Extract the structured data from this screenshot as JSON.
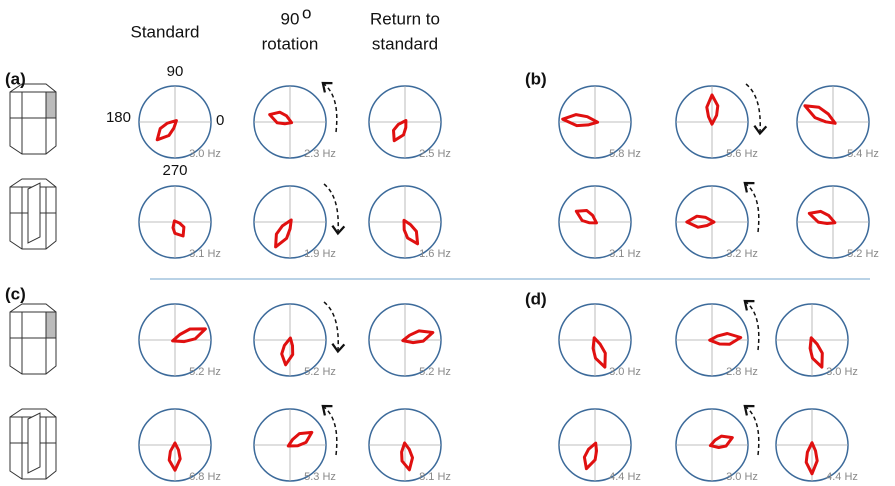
{
  "column_headers": [
    {
      "lines": [
        "Standard"
      ]
    },
    {
      "lines": [
        "90",
        "rotation"
      ],
      "sup": "o"
    },
    {
      "lines": [
        "Return to",
        "standard"
      ]
    }
  ],
  "angle_labels": {
    "top": "90",
    "left": "180",
    "right": "0",
    "bottom": "270"
  },
  "panels": [
    {
      "label": "(a)",
      "rows": [
        [
          "3.0 Hz",
          "2.3 Hz",
          "2.5 Hz"
        ],
        [
          "3.1 Hz",
          "1.9 Hz",
          "1.6 Hz"
        ]
      ]
    },
    {
      "label": "(b)",
      "rows": [
        [
          "5.8 Hz",
          "5.6 Hz",
          "5.4 Hz"
        ],
        [
          "3.1 Hz",
          "3.2 Hz",
          "5.2 Hz"
        ]
      ]
    },
    {
      "label": "(c)",
      "rows": [
        [
          "5.2 Hz",
          "5.2 Hz",
          "5.2 Hz"
        ],
        [
          "6.8 Hz",
          "5.3 Hz",
          "8.1 Hz"
        ]
      ]
    },
    {
      "label": "(d)",
      "rows": [
        [
          "3.0 Hz",
          "2.8 Hz",
          "3.0 Hz"
        ],
        [
          "4.4 Hz",
          "3.0 Hz",
          "4.4 Hz"
        ]
      ]
    }
  ]
}
